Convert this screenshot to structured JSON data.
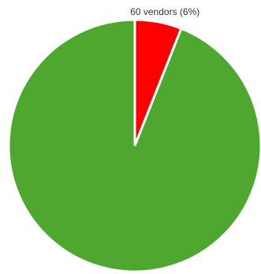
{
  "chart_data": {
    "type": "pie",
    "start_angle": "top",
    "direction": "clockwise",
    "legend": "none",
    "slices": [
      {
        "value": 6,
        "label": "60 vendors (6%)",
        "color": "#ff0000"
      },
      {
        "value": 94,
        "label": "",
        "color": "#4ea82f"
      }
    ]
  }
}
